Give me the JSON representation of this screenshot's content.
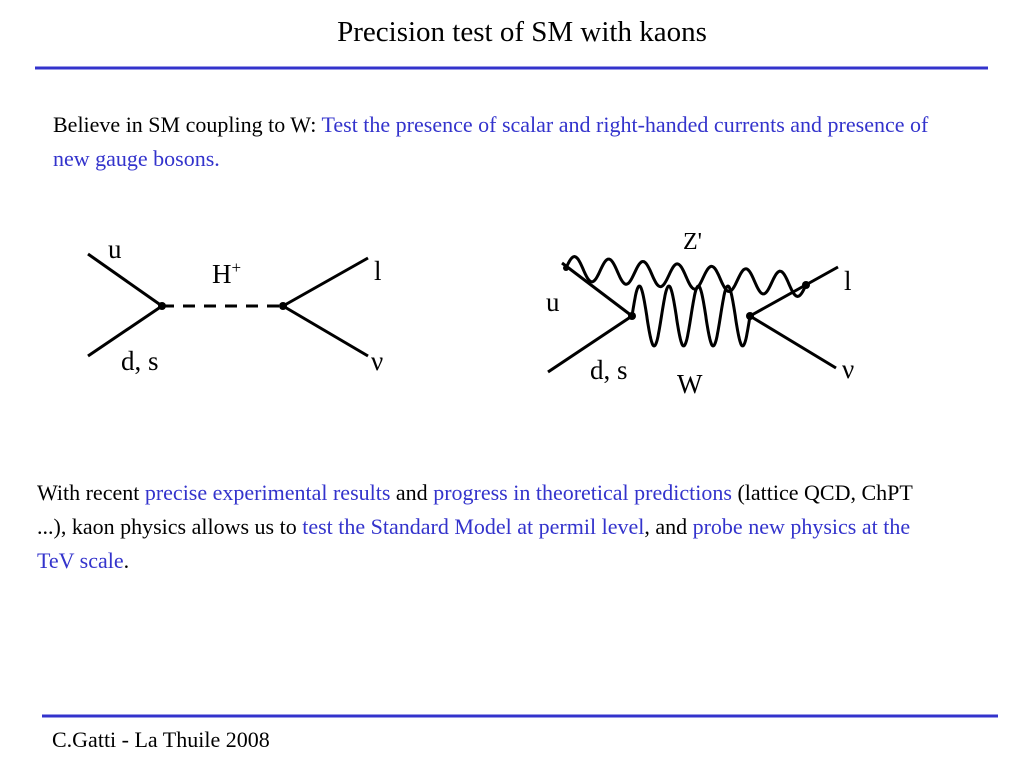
{
  "header": {
    "title": "Precision test of SM with kaons"
  },
  "intro": {
    "segments": [
      "Believe in SM coupling to W: ",
      "Test the presence of scalar and right-handed currents and presence of new gauge bosons."
    ]
  },
  "diagram1": {
    "u": "u",
    "mediator": "H",
    "mediator_charge": "+",
    "lepton": "l",
    "down": "d, s",
    "neutrino": "ν"
  },
  "diagram2": {
    "z_boson": "Z'",
    "lepton": "l",
    "u": "u",
    "down": "d, s",
    "neutrino": "ν",
    "w_boson": "W"
  },
  "body": {
    "segments": [
      "With recent ",
      "precise experimental results",
      " and ",
      "progress in theoretical predictions",
      " (lattice QCD, ChPT ...), kaon physics allows us to ",
      "test the Standard Model at permil level",
      ", and ",
      "probe new physics at the TeV scale",
      "."
    ]
  },
  "footer": {
    "text": "C.Gatti - La Thuile 2008"
  }
}
